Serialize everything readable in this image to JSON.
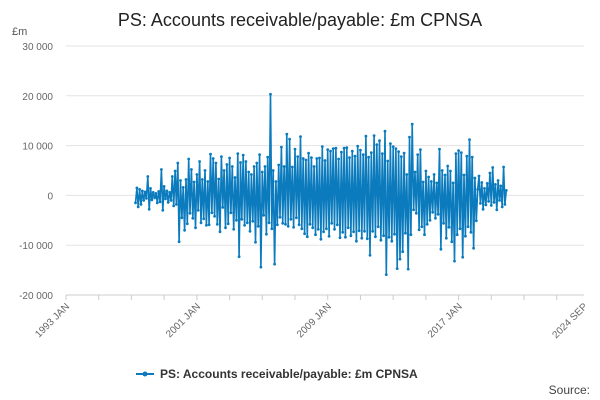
{
  "chart_data": {
    "type": "line",
    "title": "PS: Accounts receivable/payable: £m CPNSA",
    "ylabel": "£m",
    "xlabel": "",
    "ylim": [
      -20000,
      30000
    ],
    "yticks": [
      30000,
      20000,
      10000,
      0,
      -10000,
      -20000
    ],
    "ytick_labels": [
      "30 000",
      "20 000",
      "10 000",
      "0",
      "-10 000",
      "-20 000"
    ],
    "xlim": [
      "1993-01",
      "2024-09"
    ],
    "xticks": [
      "1993-01",
      "2001-01",
      "2009-01",
      "2017-01",
      "2024-09"
    ],
    "xtick_labels": [
      "1993 JAN",
      "2001 JAN",
      "2009 JAN",
      "2017 JAN",
      "2024 SEP"
    ],
    "grid": "horizontal",
    "legend_position": "bottom",
    "series": [
      {
        "name": "PS: Accounts receivable/payable: £m CPNSA",
        "color": "#0b7bbd",
        "points": [
          [
            "1997-04",
            -1500
          ],
          [
            "1997-05",
            1500
          ],
          [
            "1997-06",
            -2300
          ],
          [
            "1997-07",
            1200
          ],
          [
            "1997-08",
            -1800
          ],
          [
            "1997-09",
            900
          ],
          [
            "1997-10",
            -1000
          ],
          [
            "1997-11",
            700
          ],
          [
            "1997-12",
            -600
          ],
          [
            "1998-01",
            3800
          ],
          [
            "1998-02",
            -2800
          ],
          [
            "1998-03",
            1400
          ],
          [
            "1998-04",
            -900
          ],
          [
            "1998-05",
            600
          ],
          [
            "1998-06",
            -500
          ],
          [
            "1998-07",
            400
          ],
          [
            "1998-08",
            -1500
          ],
          [
            "1998-09",
            800
          ],
          [
            "1998-10",
            -1300
          ],
          [
            "1998-11",
            5200
          ],
          [
            "1998-12",
            -3000
          ],
          [
            "1999-01",
            1800
          ],
          [
            "1999-02",
            -700
          ],
          [
            "1999-03",
            900
          ],
          [
            "1999-04",
            -1400
          ],
          [
            "1999-05",
            600
          ],
          [
            "1999-06",
            -1000
          ],
          [
            "1999-07",
            3800
          ],
          [
            "1999-08",
            -2100
          ],
          [
            "1999-09",
            4900
          ],
          [
            "1999-10",
            -1800
          ],
          [
            "1999-11",
            6500
          ],
          [
            "1999-12",
            -9300
          ],
          [
            "2000-01",
            3000
          ],
          [
            "2000-02",
            -4500
          ],
          [
            "2000-03",
            1600
          ],
          [
            "2000-04",
            -7000
          ],
          [
            "2000-05",
            3200
          ],
          [
            "2000-06",
            -5700
          ],
          [
            "2000-07",
            7300
          ],
          [
            "2000-08",
            -3600
          ],
          [
            "2000-09",
            5200
          ],
          [
            "2000-10",
            -4600
          ],
          [
            "2000-11",
            2700
          ],
          [
            "2000-12",
            -6500
          ],
          [
            "2001-01",
            4200
          ],
          [
            "2001-02",
            -3000
          ],
          [
            "2001-03",
            6800
          ],
          [
            "2001-04",
            -5500
          ],
          [
            "2001-05",
            3200
          ],
          [
            "2001-06",
            -4700
          ],
          [
            "2001-07",
            5000
          ],
          [
            "2001-08",
            -6000
          ],
          [
            "2001-09",
            2800
          ],
          [
            "2001-10",
            -5900
          ],
          [
            "2001-11",
            8300
          ],
          [
            "2001-12",
            -3500
          ],
          [
            "2002-01",
            7400
          ],
          [
            "2002-02",
            -4200
          ],
          [
            "2002-03",
            6500
          ],
          [
            "2002-04",
            -5800
          ],
          [
            "2002-05",
            3300
          ],
          [
            "2002-06",
            -7300
          ],
          [
            "2002-07",
            7800
          ],
          [
            "2002-08",
            -2400
          ],
          [
            "2002-09",
            5000
          ],
          [
            "2002-10",
            -6500
          ],
          [
            "2002-11",
            6200
          ],
          [
            "2002-12",
            -5700
          ],
          [
            "2003-01",
            7500
          ],
          [
            "2003-02",
            -3500
          ],
          [
            "2003-03",
            5800
          ],
          [
            "2003-04",
            -6800
          ],
          [
            "2003-05",
            3600
          ],
          [
            "2003-06",
            -5000
          ],
          [
            "2003-07",
            8400
          ],
          [
            "2003-08",
            -12300
          ],
          [
            "2003-09",
            6600
          ],
          [
            "2003-10",
            -4800
          ],
          [
            "2003-11",
            8100
          ],
          [
            "2003-12",
            -6000
          ],
          [
            "2004-01",
            6800
          ],
          [
            "2004-02",
            -5500
          ],
          [
            "2004-03",
            4700
          ],
          [
            "2004-04",
            -7200
          ],
          [
            "2004-05",
            4200
          ],
          [
            "2004-06",
            -5200
          ],
          [
            "2004-07",
            5800
          ],
          [
            "2004-08",
            -9400
          ],
          [
            "2004-09",
            6500
          ],
          [
            "2004-10",
            -6200
          ],
          [
            "2004-11",
            8200
          ],
          [
            "2004-12",
            -14400
          ],
          [
            "2005-01",
            4700
          ],
          [
            "2005-02",
            -4000
          ],
          [
            "2005-03",
            5800
          ],
          [
            "2005-04",
            -7800
          ],
          [
            "2005-05",
            7700
          ],
          [
            "2005-06",
            -5500
          ],
          [
            "2005-07",
            20300
          ],
          [
            "2005-08",
            -6700
          ],
          [
            "2005-09",
            5000
          ],
          [
            "2005-10",
            -13800
          ],
          [
            "2005-11",
            2800
          ],
          [
            "2005-12",
            -5900
          ],
          [
            "2006-01",
            6100
          ],
          [
            "2006-02",
            -4400
          ],
          [
            "2006-03",
            9700
          ],
          [
            "2006-04",
            -5600
          ],
          [
            "2006-05",
            5800
          ],
          [
            "2006-06",
            -5800
          ],
          [
            "2006-07",
            12300
          ],
          [
            "2006-08",
            -6200
          ],
          [
            "2006-09",
            11300
          ],
          [
            "2006-10",
            -4800
          ],
          [
            "2006-11",
            5700
          ],
          [
            "2006-12",
            -6400
          ],
          [
            "2007-01",
            9300
          ],
          [
            "2007-02",
            -4500
          ],
          [
            "2007-03",
            7800
          ],
          [
            "2007-04",
            -5900
          ],
          [
            "2007-05",
            11800
          ],
          [
            "2007-06",
            -6700
          ],
          [
            "2007-07",
            7400
          ],
          [
            "2007-08",
            -7700
          ],
          [
            "2007-09",
            7100
          ],
          [
            "2007-10",
            -8300
          ],
          [
            "2007-11",
            8500
          ],
          [
            "2007-12",
            -5800
          ],
          [
            "2008-01",
            7600
          ],
          [
            "2008-02",
            -6500
          ],
          [
            "2008-03",
            5800
          ],
          [
            "2008-04",
            -7900
          ],
          [
            "2008-05",
            7400
          ],
          [
            "2008-06",
            -6800
          ],
          [
            "2008-07",
            7500
          ],
          [
            "2008-08",
            -8800
          ],
          [
            "2008-09",
            9800
          ],
          [
            "2008-10",
            -7300
          ],
          [
            "2008-11",
            7000
          ],
          [
            "2008-12",
            -6700
          ],
          [
            "2009-01",
            9200
          ],
          [
            "2009-02",
            -8200
          ],
          [
            "2009-03",
            8900
          ],
          [
            "2009-04",
            -5600
          ],
          [
            "2009-05",
            9400
          ],
          [
            "2009-06",
            -6800
          ],
          [
            "2009-07",
            9500
          ],
          [
            "2009-08",
            -5900
          ],
          [
            "2009-09",
            7300
          ],
          [
            "2009-10",
            -8500
          ],
          [
            "2009-11",
            8700
          ],
          [
            "2009-12",
            -7400
          ],
          [
            "2010-01",
            9500
          ],
          [
            "2010-02",
            -8400
          ],
          [
            "2010-03",
            9600
          ],
          [
            "2010-04",
            -6500
          ],
          [
            "2010-05",
            7600
          ],
          [
            "2010-06",
            -8100
          ],
          [
            "2010-07",
            8900
          ],
          [
            "2010-08",
            -7300
          ],
          [
            "2010-09",
            7900
          ],
          [
            "2010-10",
            -9200
          ],
          [
            "2010-11",
            9900
          ],
          [
            "2010-12",
            -7100
          ],
          [
            "2011-01",
            9100
          ],
          [
            "2011-02",
            -8600
          ],
          [
            "2011-03",
            8200
          ],
          [
            "2011-04",
            -7200
          ],
          [
            "2011-05",
            11900
          ],
          [
            "2011-06",
            -8700
          ],
          [
            "2011-07",
            7700
          ],
          [
            "2011-08",
            -12000
          ],
          [
            "2011-09",
            8600
          ],
          [
            "2011-10",
            -7200
          ],
          [
            "2011-11",
            12000
          ],
          [
            "2011-12",
            -8300
          ],
          [
            "2012-01",
            10200
          ],
          [
            "2012-02",
            -6300
          ],
          [
            "2012-03",
            11000
          ],
          [
            "2012-04",
            -9000
          ],
          [
            "2012-05",
            8400
          ],
          [
            "2012-06",
            -8100
          ],
          [
            "2012-07",
            12900
          ],
          [
            "2012-08",
            -15900
          ],
          [
            "2012-09",
            6900
          ],
          [
            "2012-10",
            -8400
          ],
          [
            "2012-11",
            10400
          ],
          [
            "2012-12",
            -9200
          ],
          [
            "2013-01",
            9800
          ],
          [
            "2013-02",
            -7800
          ],
          [
            "2013-03",
            9400
          ],
          [
            "2013-04",
            -14700
          ],
          [
            "2013-05",
            8800
          ],
          [
            "2013-06",
            -12800
          ],
          [
            "2013-07",
            7800
          ],
          [
            "2013-08",
            -11300
          ],
          [
            "2013-09",
            8500
          ],
          [
            "2013-10",
            -7600
          ],
          [
            "2013-11",
            4200
          ],
          [
            "2013-12",
            -14800
          ],
          [
            "2014-01",
            11700
          ],
          [
            "2014-02",
            -7900
          ],
          [
            "2014-03",
            14300
          ],
          [
            "2014-04",
            -2900
          ],
          [
            "2014-05",
            4700
          ],
          [
            "2014-06",
            -3600
          ],
          [
            "2014-07",
            8200
          ],
          [
            "2014-08",
            -6900
          ],
          [
            "2014-09",
            9200
          ],
          [
            "2014-10",
            -6300
          ],
          [
            "2014-11",
            2700
          ],
          [
            "2014-12",
            -7900
          ],
          [
            "2015-01",
            4900
          ],
          [
            "2015-02",
            -5800
          ],
          [
            "2015-03",
            3700
          ],
          [
            "2015-04",
            -5000
          ],
          [
            "2015-05",
            2800
          ],
          [
            "2015-06",
            -3400
          ],
          [
            "2015-07",
            4200
          ],
          [
            "2015-08",
            -4600
          ],
          [
            "2015-09",
            2500
          ],
          [
            "2015-10",
            -3800
          ],
          [
            "2015-11",
            9300
          ],
          [
            "2015-12",
            -10800
          ],
          [
            "2016-01",
            5000
          ],
          [
            "2016-02",
            -5600
          ],
          [
            "2016-03",
            4100
          ],
          [
            "2016-04",
            -8600
          ],
          [
            "2016-05",
            5900
          ],
          [
            "2016-06",
            -6400
          ],
          [
            "2016-07",
            4900
          ],
          [
            "2016-08",
            -9300
          ],
          [
            "2016-09",
            2500
          ],
          [
            "2016-10",
            -13200
          ],
          [
            "2016-11",
            8400
          ],
          [
            "2016-12",
            -7900
          ],
          [
            "2017-01",
            9000
          ],
          [
            "2017-02",
            -6700
          ],
          [
            "2017-03",
            8600
          ],
          [
            "2017-04",
            -12400
          ],
          [
            "2017-05",
            4100
          ],
          [
            "2017-06",
            -8200
          ],
          [
            "2017-07",
            7900
          ],
          [
            "2017-08",
            -6300
          ],
          [
            "2017-09",
            11200
          ],
          [
            "2017-10",
            -7400
          ],
          [
            "2017-11",
            7700
          ],
          [
            "2017-12",
            -10600
          ],
          [
            "2018-01",
            3500
          ],
          [
            "2018-02",
            -5100
          ],
          [
            "2018-03",
            1200
          ],
          [
            "2018-04",
            3900
          ],
          [
            "2018-05",
            -1600
          ],
          [
            "2018-06",
            2600
          ],
          [
            "2018-07",
            -2800
          ],
          [
            "2018-08",
            1400
          ],
          [
            "2018-09",
            -1900
          ],
          [
            "2018-10",
            2400
          ],
          [
            "2018-11",
            -1200
          ],
          [
            "2018-12",
            4500
          ],
          [
            "2019-01",
            -2000
          ],
          [
            "2019-02",
            5600
          ],
          [
            "2019-03",
            -1400
          ],
          [
            "2019-04",
            2200
          ],
          [
            "2019-05",
            -2900
          ],
          [
            "2019-06",
            3000
          ],
          [
            "2019-07",
            -1000
          ],
          [
            "2019-08",
            1900
          ],
          [
            "2019-09",
            -2300
          ],
          [
            "2019-10",
            5700
          ],
          [
            "2019-11",
            -1800
          ],
          [
            "2019-12",
            1000
          ]
        ]
      }
    ]
  },
  "source_label": "Source:"
}
